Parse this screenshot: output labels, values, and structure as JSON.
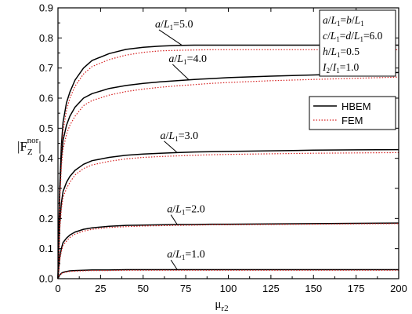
{
  "chart_data": {
    "type": "line",
    "xlabel_main": "μ",
    "xlabel_sub": "r2",
    "ylabel_main": "|F",
    "ylabel_sub": "Z",
    "ylabel_sup": "nor",
    "ylabel_end": "|",
    "xlim": [
      0,
      200
    ],
    "ylim": [
      0,
      0.9
    ],
    "x_ticks": [
      0,
      25,
      50,
      75,
      100,
      125,
      150,
      175,
      200
    ],
    "y_ticks": [
      0.0,
      0.1,
      0.2,
      0.3,
      0.4,
      0.5,
      0.6,
      0.7,
      0.8,
      0.9
    ],
    "y_tick_labels": [
      "0.0",
      "0.1",
      "0.2",
      "0.3",
      "0.4",
      "0.5",
      "0.6",
      "0.7",
      "0.8",
      "0.9"
    ],
    "grid": false,
    "legend_position": "right",
    "legend": [
      {
        "name": "HBEM",
        "color": "#000000",
        "style": "solid"
      },
      {
        "name": "FEM",
        "color": "#d62020",
        "style": "dotted"
      }
    ],
    "params_box": [
      "a/L1=b/L1",
      "c/L1=d/L1=6.0",
      "h/L1=0.5",
      "I2/I1=1.0"
    ],
    "curve_labels": [
      "a/L1=5.0",
      "a/L1=4.0",
      "a/L1=3.0",
      "a/L1=2.0",
      "a/L1=1.0"
    ],
    "x": [
      0,
      1,
      2,
      3,
      5,
      7,
      10,
      15,
      20,
      30,
      40,
      50,
      60,
      70,
      80,
      90,
      100,
      125,
      150,
      175,
      200
    ],
    "series": [
      {
        "group": "a/L1=5.0",
        "method": "HBEM",
        "values": [
          0.0,
          0.3,
          0.44,
          0.52,
          0.585,
          0.62,
          0.66,
          0.7,
          0.725,
          0.748,
          0.762,
          0.769,
          0.773,
          0.775,
          0.776,
          0.776,
          0.776,
          0.776,
          0.776,
          0.776,
          0.776
        ]
      },
      {
        "group": "a/L1=5.0",
        "method": "FEM",
        "values": [
          0.0,
          0.28,
          0.41,
          0.49,
          0.56,
          0.6,
          0.64,
          0.68,
          0.705,
          0.728,
          0.743,
          0.752,
          0.757,
          0.759,
          0.76,
          0.761,
          0.761,
          0.761,
          0.761,
          0.761,
          0.761
        ]
      },
      {
        "group": "a/L1=4.0",
        "method": "HBEM",
        "values": [
          0.0,
          0.28,
          0.4,
          0.46,
          0.51,
          0.54,
          0.57,
          0.6,
          0.615,
          0.632,
          0.642,
          0.649,
          0.654,
          0.658,
          0.662,
          0.665,
          0.668,
          0.673,
          0.677,
          0.681,
          0.685
        ]
      },
      {
        "group": "a/L1=4.0",
        "method": "FEM",
        "values": [
          0.0,
          0.25,
          0.37,
          0.43,
          0.48,
          0.51,
          0.54,
          0.575,
          0.592,
          0.61,
          0.622,
          0.63,
          0.636,
          0.641,
          0.645,
          0.649,
          0.652,
          0.658,
          0.662,
          0.666,
          0.67
        ]
      },
      {
        "group": "a/L1=3.0",
        "method": "HBEM",
        "values": [
          0.0,
          0.18,
          0.25,
          0.29,
          0.32,
          0.34,
          0.36,
          0.38,
          0.392,
          0.403,
          0.41,
          0.414,
          0.417,
          0.419,
          0.421,
          0.422,
          0.423,
          0.425,
          0.427,
          0.428,
          0.429
        ]
      },
      {
        "group": "a/L1=3.0",
        "method": "FEM",
        "values": [
          0.0,
          0.16,
          0.23,
          0.27,
          0.3,
          0.32,
          0.345,
          0.366,
          0.378,
          0.39,
          0.398,
          0.403,
          0.406,
          0.408,
          0.41,
          0.412,
          0.413,
          0.415,
          0.417,
          0.418,
          0.419
        ]
      },
      {
        "group": "a/L1=2.0",
        "method": "HBEM",
        "values": [
          0.0,
          0.07,
          0.1,
          0.12,
          0.135,
          0.145,
          0.155,
          0.164,
          0.169,
          0.174,
          0.177,
          0.178,
          0.179,
          0.18,
          0.18,
          0.181,
          0.181,
          0.182,
          0.183,
          0.184,
          0.185
        ]
      },
      {
        "group": "a/L1=2.0",
        "method": "FEM",
        "values": [
          0.0,
          0.06,
          0.09,
          0.11,
          0.125,
          0.137,
          0.148,
          0.158,
          0.164,
          0.17,
          0.173,
          0.175,
          0.176,
          0.177,
          0.178,
          0.179,
          0.179,
          0.18,
          0.181,
          0.182,
          0.183
        ]
      },
      {
        "group": "a/L1=1.0",
        "method": "HBEM",
        "values": [
          0.0,
          0.012,
          0.018,
          0.021,
          0.024,
          0.026,
          0.027,
          0.028,
          0.029,
          0.029,
          0.03,
          0.03,
          0.03,
          0.03,
          0.03,
          0.03,
          0.03,
          0.03,
          0.03,
          0.03,
          0.03
        ]
      },
      {
        "group": "a/L1=1.0",
        "method": "FEM",
        "values": [
          0.0,
          0.011,
          0.016,
          0.019,
          0.022,
          0.024,
          0.025,
          0.026,
          0.027,
          0.027,
          0.028,
          0.028,
          0.028,
          0.028,
          0.028,
          0.028,
          0.028,
          0.028,
          0.028,
          0.028,
          0.028
        ]
      }
    ],
    "annotations": [
      {
        "text": "a/L1=5.0",
        "x": 57,
        "y": 0.835,
        "target_x": 73,
        "target_y": 0.775
      },
      {
        "text": "a/L1=4.0",
        "x": 65,
        "y": 0.72,
        "target_x": 77,
        "target_y": 0.66
      },
      {
        "text": "a/L1=3.0",
        "x": 60,
        "y": 0.465,
        "target_x": 70,
        "target_y": 0.419
      },
      {
        "text": "a/L1=2.0",
        "x": 64,
        "y": 0.22,
        "target_x": 70,
        "target_y": 0.18
      },
      {
        "text": "a/L1=1.0",
        "x": 64,
        "y": 0.07,
        "target_x": 70,
        "target_y": 0.03
      }
    ]
  }
}
